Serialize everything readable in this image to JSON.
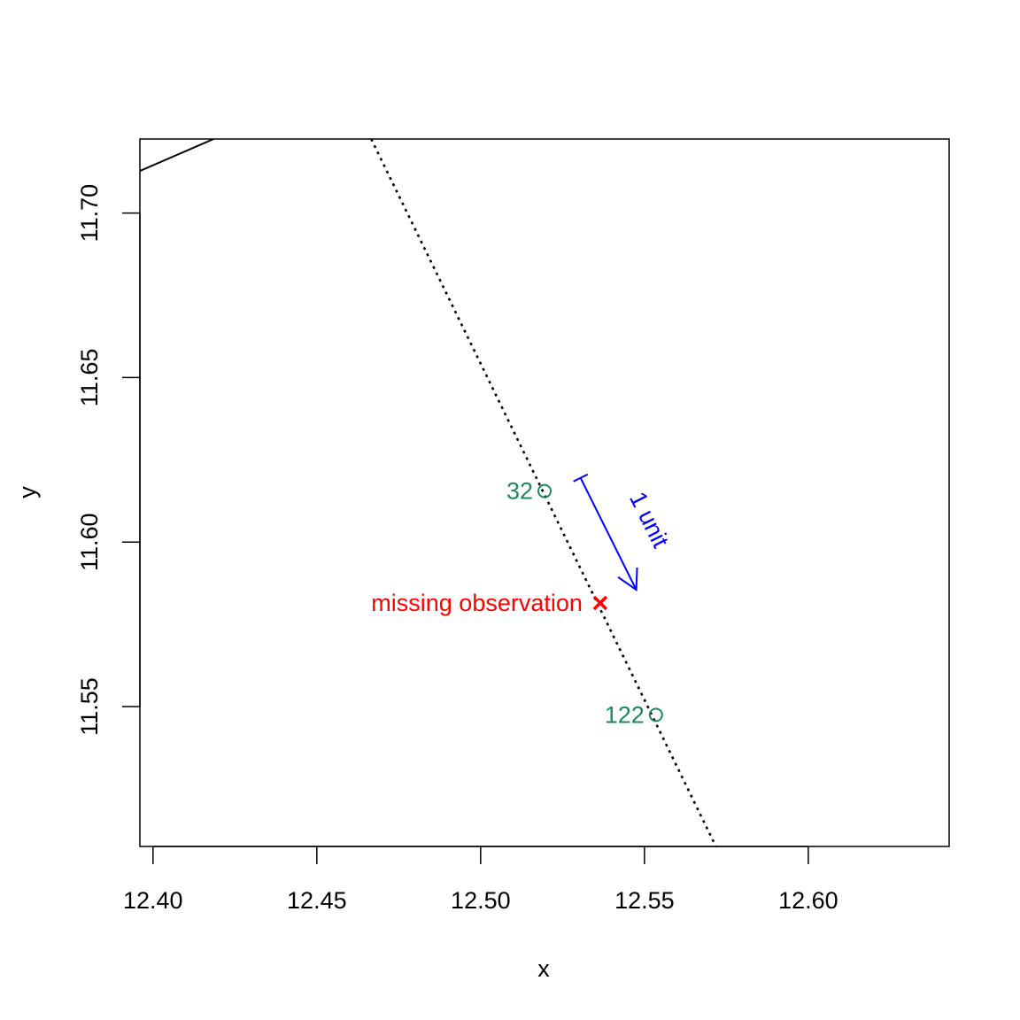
{
  "chart_data": {
    "type": "line",
    "title": "",
    "xlabel": "x",
    "ylabel": "y",
    "xlim": [
      12.396,
      12.643
    ],
    "ylim": [
      11.5075,
      11.7225
    ],
    "x_ticks": [
      "12.40",
      "12.45",
      "12.50",
      "12.55",
      "12.60"
    ],
    "y_ticks": [
      "11.55",
      "11.60",
      "11.65",
      "11.70"
    ],
    "grid": false,
    "series": [
      {
        "style": "solid",
        "color": "#000000",
        "points": [
          [
            12.396,
            11.7128
          ],
          [
            12.4185,
            11.7225
          ]
        ]
      },
      {
        "style": "dotted",
        "color": "#000000",
        "points": [
          [
            12.4666,
            11.7225
          ],
          [
            12.5718,
            11.5075
          ]
        ]
      }
    ],
    "points": [
      {
        "label": "32",
        "x": 12.5195,
        "y": 11.6155,
        "color": "#1b8a5a",
        "shape": "circle"
      },
      {
        "label": "122",
        "x": 12.5535,
        "y": 11.5475,
        "color": "#1b8a5a",
        "shape": "circle"
      }
    ],
    "missing": {
      "label": "missing observation",
      "x": 12.5365,
      "y": 11.5815,
      "color": "#ff0000",
      "shape": "cross"
    },
    "unit_arrow": {
      "label": "1 unit",
      "color": "#0000ff",
      "from": [
        12.5305,
        11.6195
      ],
      "to": [
        12.5475,
        11.5855
      ]
    }
  }
}
